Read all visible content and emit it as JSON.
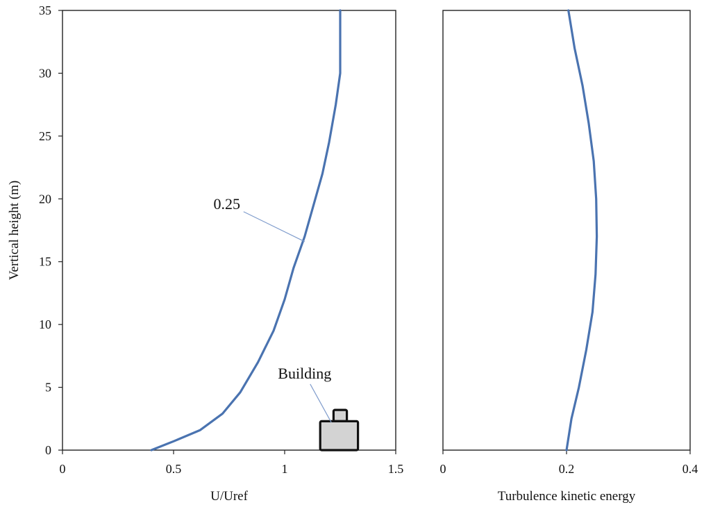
{
  "chart_data": [
    {
      "type": "line",
      "xlabel": "U/Uref",
      "ylabel": "Vertical height (m)",
      "xlim": [
        0,
        1.5
      ],
      "ylim": [
        0,
        35
      ],
      "xticks": [
        "0",
        "0.5",
        "1",
        "1.5"
      ],
      "yticks": [
        "0",
        "5",
        "10",
        "15",
        "20",
        "25",
        "30",
        "35"
      ],
      "grid": false,
      "series": [
        {
          "color": "#4a73b0",
          "x": [
            0.4,
            0.5,
            0.62,
            0.72,
            0.8,
            0.88,
            0.95,
            1.0,
            1.04,
            1.09,
            1.13,
            1.17,
            1.2,
            1.23,
            1.25,
            1.25,
            1.25
          ],
          "y": [
            0,
            0.7,
            1.6,
            2.9,
            4.6,
            7.0,
            9.5,
            12.0,
            14.5,
            17.0,
            19.5,
            22.0,
            24.5,
            27.5,
            30.0,
            32.5,
            35.0
          ]
        }
      ],
      "annotations": [
        {
          "text": "0.25",
          "x": 0.74,
          "y": 19.2,
          "point_x": 1.09,
          "point_y": 16.6
        },
        {
          "text": "Building",
          "x": 1.09,
          "y": 5.7,
          "point_x": 1.21,
          "point_y": 2.2
        }
      ],
      "building": {
        "label_ref": "Building",
        "base_x": [
          1.16,
          1.33
        ],
        "base_top": 2.3,
        "roof_x": [
          1.22,
          1.28
        ],
        "roof_top": 3.2
      }
    },
    {
      "type": "line",
      "xlabel": "Turbulence kinetic energy",
      "ylabel": "",
      "xlim": [
        0,
        0.4
      ],
      "ylim": [
        0,
        35
      ],
      "xticks": [
        "0",
        "0.2",
        "0.4"
      ],
      "yticks": [],
      "grid": false,
      "series": [
        {
          "color": "#4a73b0",
          "x": [
            0.2,
            0.208,
            0.22,
            0.232,
            0.242,
            0.247,
            0.249,
            0.248,
            0.244,
            0.236,
            0.226,
            0.213,
            0.203
          ],
          "y": [
            0,
            2.5,
            5.0,
            8.0,
            11.0,
            14.0,
            17.0,
            20.0,
            23.0,
            26.0,
            29.0,
            32.0,
            35.0
          ]
        }
      ]
    }
  ]
}
